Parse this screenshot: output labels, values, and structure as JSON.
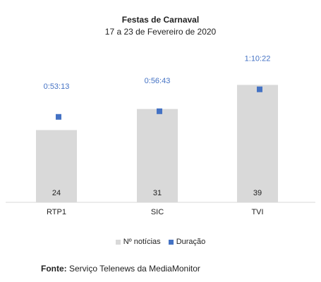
{
  "chart_data": {
    "type": "bar",
    "title": "Festas de Carnaval",
    "subtitle": "17 a 23 de Fevereiro de 2020",
    "categories": [
      "RTP1",
      "SIC",
      "TVI"
    ],
    "series": [
      {
        "name": "Nº notícias",
        "values": [
          24,
          31,
          39
        ],
        "color": "#d9d9d9"
      },
      {
        "name": "Duração",
        "values": [
          "0:53:13",
          "0:56:43",
          "1:10:22"
        ],
        "seconds": [
          3193,
          3403,
          4222
        ],
        "color": "#4472c4"
      }
    ],
    "ylim": [
      0,
      48
    ],
    "legend": "bottom",
    "grid": false
  },
  "source": {
    "label": "Fonte:",
    "text": "Serviço Telenews da MediaMonitor"
  }
}
